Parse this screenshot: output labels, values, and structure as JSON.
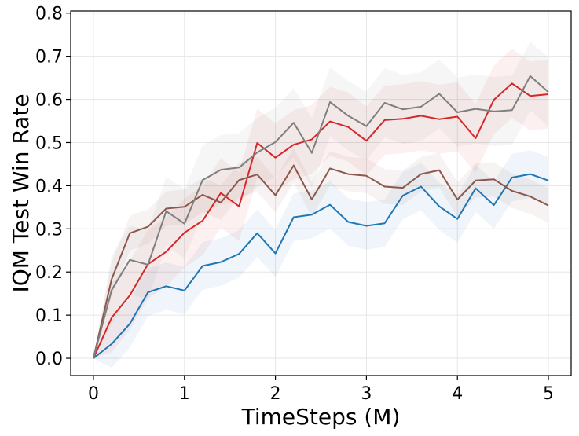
{
  "chart_data": {
    "type": "line",
    "title": "",
    "xlabel": "TimeSteps (M)",
    "ylabel": "IQM Test Win Rate",
    "xlim": [
      -0.25,
      5.25
    ],
    "ylim": [
      -0.04,
      0.805
    ],
    "xticks": [
      0,
      1,
      2,
      3,
      4,
      5
    ],
    "xtick_labels": [
      "0",
      "1",
      "2",
      "3",
      "4",
      "5"
    ],
    "yticks": [
      0.0,
      0.1,
      0.2,
      0.3,
      0.4,
      0.5,
      0.6,
      0.7,
      0.8
    ],
    "ytick_labels": [
      "0.0",
      "0.1",
      "0.2",
      "0.3",
      "0.4",
      "0.5",
      "0.6",
      "0.7",
      "0.8"
    ],
    "grid": true,
    "legend": "none",
    "x": [
      0,
      0.2,
      0.4,
      0.6,
      0.8,
      1.0,
      1.2,
      1.4,
      1.6,
      1.8,
      2.0,
      2.2,
      2.4,
      2.6,
      2.8,
      3.0,
      3.2,
      3.4,
      3.6,
      3.8,
      4.0,
      4.2,
      4.4,
      4.6,
      4.8,
      5.0
    ],
    "series": [
      {
        "color": "#1f77b4",
        "values": [
          0.0,
          0.033,
          0.08,
          0.153,
          0.167,
          0.157,
          0.214,
          0.223,
          0.242,
          0.29,
          0.243,
          0.327,
          0.333,
          0.356,
          0.316,
          0.307,
          0.313,
          0.377,
          0.398,
          0.352,
          0.323,
          0.394,
          0.355,
          0.419,
          0.427,
          0.412
        ],
        "band": 0.055
      },
      {
        "color": "#d62728",
        "values": [
          0.0,
          0.094,
          0.146,
          0.218,
          0.247,
          0.291,
          0.319,
          0.383,
          0.352,
          0.499,
          0.465,
          0.495,
          0.507,
          0.549,
          0.536,
          0.504,
          0.552,
          0.555,
          0.562,
          0.554,
          0.56,
          0.51,
          0.599,
          0.637,
          0.608,
          0.612
        ],
        "band": 0.08
      },
      {
        "color": "#8c564b",
        "values": [
          0.0,
          0.183,
          0.29,
          0.305,
          0.347,
          0.351,
          0.379,
          0.361,
          0.413,
          0.426,
          0.378,
          0.447,
          0.368,
          0.44,
          0.427,
          0.423,
          0.398,
          0.395,
          0.427,
          0.436,
          0.368,
          0.412,
          0.415,
          0.388,
          0.375,
          0.354
        ],
        "band": 0.04
      },
      {
        "color": "#7f7f7f",
        "values": [
          0.0,
          0.158,
          0.228,
          0.217,
          0.341,
          0.312,
          0.413,
          0.437,
          0.442,
          0.477,
          0.501,
          0.546,
          0.476,
          0.594,
          0.562,
          0.538,
          0.592,
          0.577,
          0.583,
          0.613,
          0.57,
          0.578,
          0.572,
          0.575,
          0.654,
          0.617
        ],
        "band": 0.08
      }
    ]
  }
}
